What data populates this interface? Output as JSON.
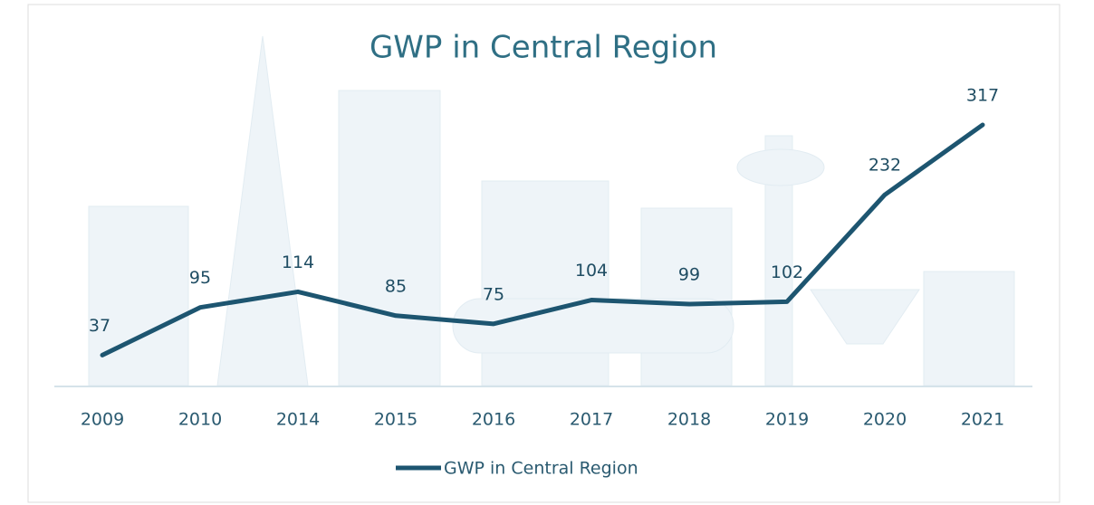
{
  "chart_data": {
    "type": "line",
    "title": "GWP in Central Region",
    "categories": [
      "2009",
      "2010",
      "2014",
      "2015",
      "2016",
      "2017",
      "2018",
      "2019",
      "2020",
      "2021"
    ],
    "series": [
      {
        "name": "GWP in Central Region",
        "color": "#1d5570",
        "values": [
          37,
          95,
          114,
          85,
          75,
          104,
          99,
          102,
          232,
          317
        ]
      }
    ]
  }
}
